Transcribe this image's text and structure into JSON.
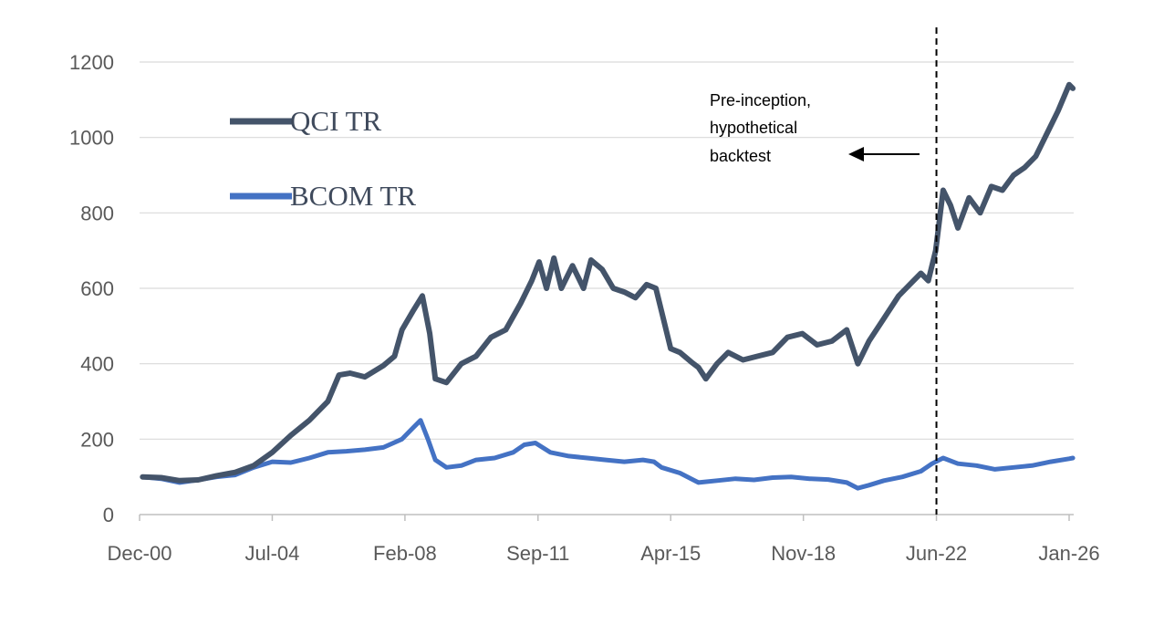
{
  "chart_data": {
    "type": "line",
    "title": "",
    "xlabel": "",
    "ylabel": "",
    "ylim": [
      0,
      1200
    ],
    "yticks": [
      0,
      200,
      400,
      600,
      800,
      1000,
      1200
    ],
    "xlim": [
      2000.92,
      2026.0
    ],
    "x_ticks": [
      {
        "label": "Dec-00",
        "x": 2000.92
      },
      {
        "label": "Jul-04",
        "x": 2004.5
      },
      {
        "label": "Feb-08",
        "x": 2008.08
      },
      {
        "label": "Sep-11",
        "x": 2011.67
      },
      {
        "label": "Apr-15",
        "x": 2015.25
      },
      {
        "label": "Nov-18",
        "x": 2018.83
      },
      {
        "label": "Jun-22",
        "x": 2022.42
      },
      {
        "label": "Jan-26",
        "x": 2026.0
      }
    ],
    "grid": true,
    "legend_position": "upper-left",
    "annotation": {
      "lines": [
        "Pre-inception,",
        "hypothetical",
        "backtest"
      ],
      "divider_x": 2022.42
    },
    "series": [
      {
        "name": "QCI TR",
        "color": "#44546a",
        "points": [
          [
            2001.0,
            100
          ],
          [
            2001.5,
            98
          ],
          [
            2002.0,
            90
          ],
          [
            2002.5,
            92
          ],
          [
            2003.0,
            103
          ],
          [
            2003.5,
            112
          ],
          [
            2004.0,
            130
          ],
          [
            2004.5,
            165
          ],
          [
            2005.0,
            210
          ],
          [
            2005.5,
            250
          ],
          [
            2006.0,
            300
          ],
          [
            2006.3,
            370
          ],
          [
            2006.6,
            375
          ],
          [
            2007.0,
            365
          ],
          [
            2007.5,
            395
          ],
          [
            2007.8,
            420
          ],
          [
            2008.0,
            490
          ],
          [
            2008.3,
            540
          ],
          [
            2008.55,
            580
          ],
          [
            2008.75,
            480
          ],
          [
            2008.9,
            360
          ],
          [
            2009.2,
            350
          ],
          [
            2009.6,
            400
          ],
          [
            2010.0,
            420
          ],
          [
            2010.4,
            470
          ],
          [
            2010.8,
            490
          ],
          [
            2011.2,
            560
          ],
          [
            2011.5,
            620
          ],
          [
            2011.7,
            670
          ],
          [
            2011.9,
            600
          ],
          [
            2012.1,
            680
          ],
          [
            2012.3,
            600
          ],
          [
            2012.6,
            660
          ],
          [
            2012.9,
            600
          ],
          [
            2013.1,
            675
          ],
          [
            2013.4,
            650
          ],
          [
            2013.7,
            600
          ],
          [
            2014.0,
            590
          ],
          [
            2014.3,
            575
          ],
          [
            2014.6,
            610
          ],
          [
            2014.85,
            600
          ],
          [
            2015.0,
            540
          ],
          [
            2015.25,
            440
          ],
          [
            2015.5,
            430
          ],
          [
            2015.8,
            405
          ],
          [
            2016.0,
            390
          ],
          [
            2016.2,
            360
          ],
          [
            2016.5,
            400
          ],
          [
            2016.8,
            430
          ],
          [
            2017.2,
            410
          ],
          [
            2017.6,
            420
          ],
          [
            2018.0,
            430
          ],
          [
            2018.4,
            470
          ],
          [
            2018.8,
            480
          ],
          [
            2019.2,
            450
          ],
          [
            2019.6,
            460
          ],
          [
            2020.0,
            490
          ],
          [
            2020.3,
            400
          ],
          [
            2020.6,
            460
          ],
          [
            2021.0,
            520
          ],
          [
            2021.4,
            580
          ],
          [
            2021.8,
            620
          ],
          [
            2022.0,
            640
          ],
          [
            2022.2,
            620
          ],
          [
            2022.4,
            700
          ],
          [
            2022.6,
            860
          ],
          [
            2022.8,
            820
          ],
          [
            2023.0,
            760
          ],
          [
            2023.3,
            840
          ],
          [
            2023.6,
            800
          ],
          [
            2023.9,
            870
          ],
          [
            2024.2,
            860
          ],
          [
            2024.5,
            900
          ],
          [
            2024.8,
            920
          ],
          [
            2025.1,
            950
          ],
          [
            2025.4,
            1010
          ],
          [
            2025.7,
            1070
          ],
          [
            2026.0,
            1140
          ],
          [
            2026.1,
            1130
          ]
        ]
      },
      {
        "name": "BCOM TR",
        "color": "#4472c4",
        "points": [
          [
            2001.0,
            100
          ],
          [
            2001.5,
            95
          ],
          [
            2002.0,
            85
          ],
          [
            2002.5,
            92
          ],
          [
            2003.0,
            100
          ],
          [
            2003.5,
            105
          ],
          [
            2004.0,
            125
          ],
          [
            2004.5,
            140
          ],
          [
            2005.0,
            138
          ],
          [
            2005.5,
            150
          ],
          [
            2006.0,
            165
          ],
          [
            2006.5,
            168
          ],
          [
            2007.0,
            172
          ],
          [
            2007.5,
            178
          ],
          [
            2008.0,
            200
          ],
          [
            2008.3,
            230
          ],
          [
            2008.5,
            250
          ],
          [
            2008.7,
            200
          ],
          [
            2008.9,
            145
          ],
          [
            2009.2,
            125
          ],
          [
            2009.6,
            130
          ],
          [
            2010.0,
            145
          ],
          [
            2010.5,
            150
          ],
          [
            2011.0,
            165
          ],
          [
            2011.3,
            185
          ],
          [
            2011.6,
            190
          ],
          [
            2012.0,
            165
          ],
          [
            2012.5,
            155
          ],
          [
            2013.0,
            150
          ],
          [
            2013.5,
            145
          ],
          [
            2014.0,
            140
          ],
          [
            2014.5,
            145
          ],
          [
            2014.8,
            140
          ],
          [
            2015.0,
            125
          ],
          [
            2015.5,
            110
          ],
          [
            2016.0,
            85
          ],
          [
            2016.5,
            90
          ],
          [
            2017.0,
            95
          ],
          [
            2017.5,
            92
          ],
          [
            2018.0,
            98
          ],
          [
            2018.5,
            100
          ],
          [
            2019.0,
            95
          ],
          [
            2019.5,
            93
          ],
          [
            2020.0,
            85
          ],
          [
            2020.3,
            70
          ],
          [
            2020.6,
            78
          ],
          [
            2021.0,
            90
          ],
          [
            2021.5,
            100
          ],
          [
            2022.0,
            115
          ],
          [
            2022.3,
            135
          ],
          [
            2022.6,
            150
          ],
          [
            2023.0,
            135
          ],
          [
            2023.5,
            130
          ],
          [
            2024.0,
            120
          ],
          [
            2024.5,
            125
          ],
          [
            2025.0,
            130
          ],
          [
            2025.5,
            140
          ],
          [
            2026.0,
            148
          ],
          [
            2026.1,
            150
          ]
        ]
      }
    ]
  }
}
